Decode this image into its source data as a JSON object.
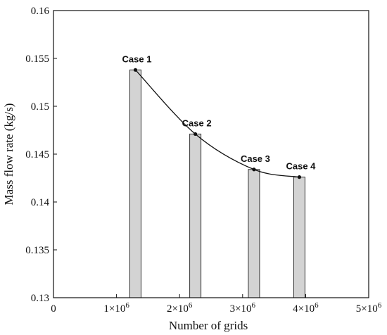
{
  "chart_data": {
    "type": "bar",
    "xlabel": "Number of grids",
    "ylabel": "Mass flow rate (kg/s)",
    "xlim": [
      0,
      5000000
    ],
    "ylim": [
      0.13,
      0.16
    ],
    "x_ticks": [
      {
        "value": 0,
        "label": "0",
        "exp": ""
      },
      {
        "value": 1000000,
        "label": "1×10",
        "exp": "6"
      },
      {
        "value": 2000000,
        "label": "2×10",
        "exp": "6"
      },
      {
        "value": 3000000,
        "label": "3×10",
        "exp": "6"
      },
      {
        "value": 4000000,
        "label": "4×10",
        "exp": "6"
      },
      {
        "value": 5000000,
        "label": "5×10",
        "exp": "6"
      }
    ],
    "y_ticks": [
      {
        "value": 0.13,
        "label": "0.13"
      },
      {
        "value": 0.135,
        "label": "0.135"
      },
      {
        "value": 0.14,
        "label": "0.14"
      },
      {
        "value": 0.145,
        "label": "0.145"
      },
      {
        "value": 0.15,
        "label": "0.15"
      },
      {
        "value": 0.155,
        "label": "0.155"
      },
      {
        "value": 0.16,
        "label": "0.16"
      }
    ],
    "bars": [
      {
        "label": "Case 1",
        "x": 1300000,
        "value": 0.1538
      },
      {
        "label": "Case 2",
        "x": 2250000,
        "value": 0.1471
      },
      {
        "label": "Case 3",
        "x": 3180000,
        "value": 0.1434
      },
      {
        "label": "Case 4",
        "x": 3900000,
        "value": 0.1426
      }
    ],
    "bar_color": "#d3d3d3",
    "line_color": "#111111",
    "grid": false,
    "legend": "none"
  }
}
